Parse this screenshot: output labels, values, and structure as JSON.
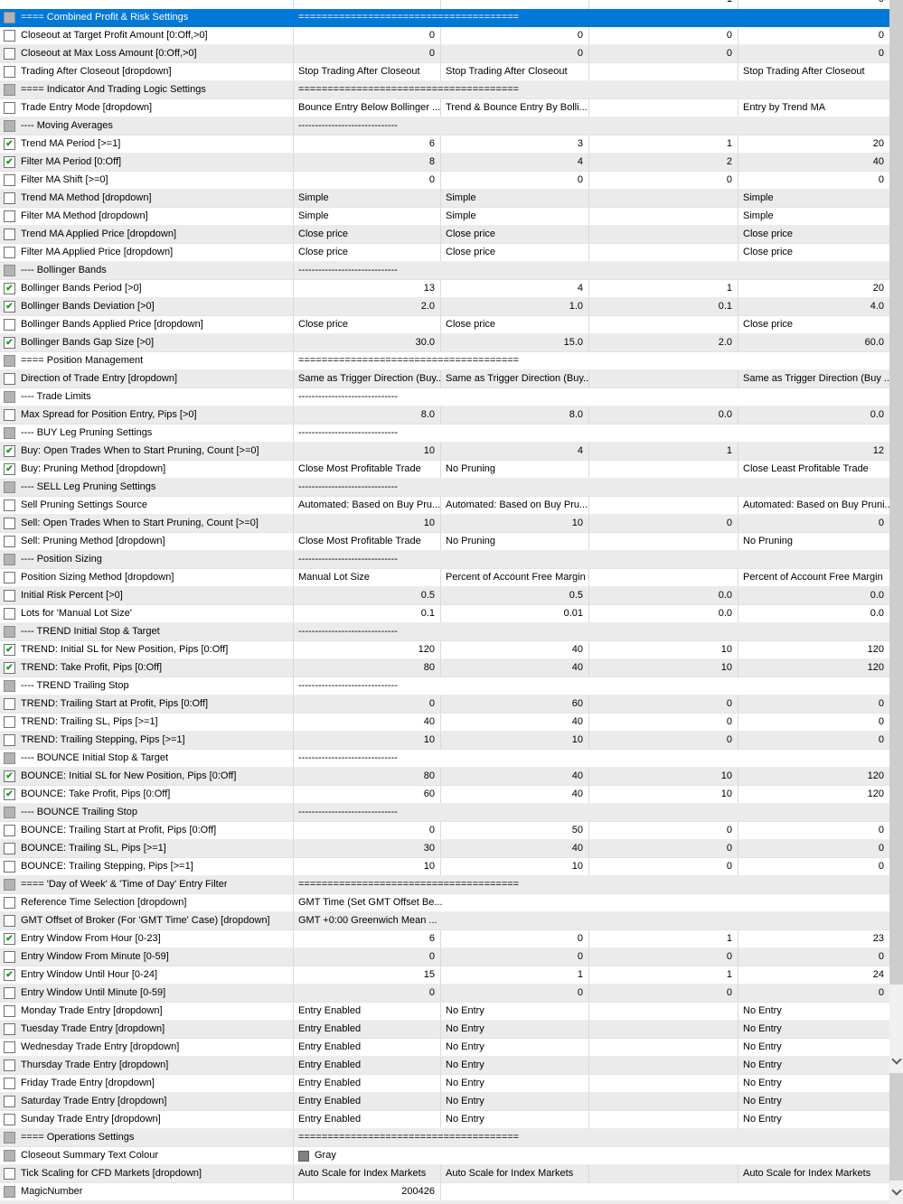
{
  "selection_color": "#0078d7",
  "check_color": "#149c14",
  "section_fill": "======================================",
  "sub_fill": "------------------------------",
  "partial_top_row": {
    "value": "",
    "start": "",
    "step": "1",
    "stop": "0"
  },
  "rows": [
    {
      "name": "==== Combined Profit & Risk Settings",
      "kind": "section",
      "checkbox": "gray",
      "selected": true
    },
    {
      "name": "Closeout at Target Profit Amount [0:Off,>0]",
      "kind": "param",
      "checkbox": "unchecked",
      "cells": [
        "0",
        "0",
        "0",
        "0"
      ]
    },
    {
      "name": "Closeout at Max Loss Amount [0:Off,>0]",
      "kind": "param",
      "checkbox": "unchecked",
      "cells": [
        "0",
        "0",
        "0",
        "0"
      ]
    },
    {
      "name": "Trading After Closeout [dropdown]",
      "kind": "param",
      "checkbox": "unchecked",
      "cells": [
        "Stop Trading After Closeout",
        "Stop Trading After Closeout",
        "",
        "Stop Trading After Closeout"
      ]
    },
    {
      "name": "==== Indicator And Trading Logic Settings",
      "kind": "section",
      "checkbox": "gray"
    },
    {
      "name": "Trade Entry Mode [dropdown]",
      "kind": "param",
      "checkbox": "unchecked",
      "cells": [
        "Bounce Entry Below Bollinger ...",
        "Trend & Bounce Entry By Bolli...",
        "",
        "Entry by Trend MA"
      ]
    },
    {
      "name": "---- Moving Averages",
      "kind": "sub",
      "checkbox": "gray"
    },
    {
      "name": "Trend MA Period [>=1]",
      "kind": "param",
      "checkbox": "checked",
      "cells": [
        "6",
        "3",
        "1",
        "20"
      ]
    },
    {
      "name": "Filter MA Period [0:Off]",
      "kind": "param",
      "checkbox": "checked",
      "cells": [
        "8",
        "4",
        "2",
        "40"
      ]
    },
    {
      "name": "Filter MA Shift [>=0]",
      "kind": "param",
      "checkbox": "unchecked",
      "cells": [
        "0",
        "0",
        "0",
        "0"
      ]
    },
    {
      "name": "Trend MA Method [dropdown]",
      "kind": "param",
      "checkbox": "unchecked",
      "cells": [
        "Simple",
        "Simple",
        "",
        "Simple"
      ]
    },
    {
      "name": "Filter MA Method [dropdown]",
      "kind": "param",
      "checkbox": "unchecked",
      "cells": [
        "Simple",
        "Simple",
        "",
        "Simple"
      ]
    },
    {
      "name": "Trend MA Applied Price [dropdown]",
      "kind": "param",
      "checkbox": "unchecked",
      "cells": [
        "Close price",
        "Close price",
        "",
        "Close price"
      ]
    },
    {
      "name": "Filter MA Applied Price [dropdown]",
      "kind": "param",
      "checkbox": "unchecked",
      "cells": [
        "Close price",
        "Close price",
        "",
        "Close price"
      ]
    },
    {
      "name": "---- Bollinger Bands",
      "kind": "sub",
      "checkbox": "gray"
    },
    {
      "name": "Bollinger Bands Period [>0]",
      "kind": "param",
      "checkbox": "checked",
      "cells": [
        "13",
        "4",
        "1",
        "20"
      ]
    },
    {
      "name": "Bollinger Bands Deviation [>0]",
      "kind": "param",
      "checkbox": "checked",
      "cells": [
        "2.0",
        "1.0",
        "0.1",
        "4.0"
      ]
    },
    {
      "name": "Bollinger Bands Applied Price [dropdown]",
      "kind": "param",
      "checkbox": "unchecked",
      "cells": [
        "Close price",
        "Close price",
        "",
        "Close price"
      ]
    },
    {
      "name": "Bollinger Bands Gap Size [>0]",
      "kind": "param",
      "checkbox": "checked",
      "cells": [
        "30.0",
        "15.0",
        "2.0",
        "60.0"
      ]
    },
    {
      "name": "==== Position Management",
      "kind": "section",
      "checkbox": "gray"
    },
    {
      "name": "Direction of Trade Entry [dropdown]",
      "kind": "param",
      "checkbox": "unchecked",
      "cells": [
        "Same as Trigger Direction (Buy...",
        "Same as Trigger Direction (Buy...",
        "",
        "Same as Trigger Direction (Buy ..."
      ]
    },
    {
      "name": "---- Trade Limits",
      "kind": "sub",
      "checkbox": "gray"
    },
    {
      "name": "Max Spread for Position Entry, Pips [>0]",
      "kind": "param",
      "checkbox": "unchecked",
      "cells": [
        "8.0",
        "8.0",
        "0.0",
        "0.0"
      ]
    },
    {
      "name": "---- BUY Leg Pruning Settings",
      "kind": "sub",
      "checkbox": "gray"
    },
    {
      "name": "Buy: Open Trades When to Start Pruning, Count [>=0]",
      "kind": "param",
      "checkbox": "checked",
      "cells": [
        "10",
        "4",
        "1",
        "12"
      ]
    },
    {
      "name": "Buy: Pruning Method [dropdown]",
      "kind": "param",
      "checkbox": "checked",
      "cells": [
        "Close Most Profitable Trade",
        "No Pruning",
        "",
        "Close Least Profitable Trade"
      ]
    },
    {
      "name": "---- SELL Leg Pruning Settings",
      "kind": "sub",
      "checkbox": "gray"
    },
    {
      "name": "Sell Pruning Settings Source",
      "kind": "param",
      "checkbox": "unchecked",
      "cells": [
        "Automated: Based on Buy Pru...",
        "Automated: Based on Buy Pru...",
        "",
        "Automated: Based on Buy Pruni..."
      ]
    },
    {
      "name": "Sell: Open Trades When to Start Pruning, Count [>=0]",
      "kind": "param",
      "checkbox": "unchecked",
      "cells": [
        "10",
        "10",
        "0",
        "0"
      ]
    },
    {
      "name": "Sell: Pruning Method [dropdown]",
      "kind": "param",
      "checkbox": "unchecked",
      "cells": [
        "Close Most Profitable Trade",
        "No Pruning",
        "",
        "No Pruning"
      ]
    },
    {
      "name": "---- Position Sizing",
      "kind": "sub",
      "checkbox": "gray"
    },
    {
      "name": "Position Sizing Method [dropdown]",
      "kind": "param",
      "checkbox": "unchecked",
      "cells": [
        "Manual Lot Size",
        "Percent of Account Free Margin",
        "",
        "Percent of Account Free Margin"
      ]
    },
    {
      "name": "Initial Risk Percent [>0]",
      "kind": "param",
      "checkbox": "unchecked",
      "cells": [
        "0.5",
        "0.5",
        "0.0",
        "0.0"
      ]
    },
    {
      "name": "Lots for 'Manual Lot Size'",
      "kind": "param",
      "checkbox": "unchecked",
      "cells": [
        "0.1",
        "0.01",
        "0.0",
        "0.0"
      ]
    },
    {
      "name": "---- TREND Initial Stop & Target",
      "kind": "sub",
      "checkbox": "gray"
    },
    {
      "name": "TREND: Initial SL for New Position, Pips [0:Off]",
      "kind": "param",
      "checkbox": "checked",
      "cells": [
        "120",
        "40",
        "10",
        "120"
      ]
    },
    {
      "name": "TREND: Take Profit, Pips [0:Off]",
      "kind": "param",
      "checkbox": "checked",
      "cells": [
        "80",
        "40",
        "10",
        "120"
      ]
    },
    {
      "name": "---- TREND Trailing Stop",
      "kind": "sub",
      "checkbox": "gray"
    },
    {
      "name": "TREND: Trailing Start at Profit, Pips [0:Off]",
      "kind": "param",
      "checkbox": "unchecked",
      "cells": [
        "0",
        "60",
        "0",
        "0"
      ]
    },
    {
      "name": "TREND: Trailing SL, Pips [>=1]",
      "kind": "param",
      "checkbox": "unchecked",
      "cells": [
        "40",
        "40",
        "0",
        "0"
      ]
    },
    {
      "name": "TREND: Trailing Stepping, Pips [>=1]",
      "kind": "param",
      "checkbox": "unchecked",
      "cells": [
        "10",
        "10",
        "0",
        "0"
      ]
    },
    {
      "name": "---- BOUNCE Initial Stop & Target",
      "kind": "sub",
      "checkbox": "gray"
    },
    {
      "name": "BOUNCE: Initial SL for New Position, Pips [0:Off]",
      "kind": "param",
      "checkbox": "checked",
      "cells": [
        "80",
        "40",
        "10",
        "120"
      ]
    },
    {
      "name": "BOUNCE: Take Profit, Pips [0:Off]",
      "kind": "param",
      "checkbox": "checked",
      "cells": [
        "60",
        "40",
        "10",
        "120"
      ]
    },
    {
      "name": "---- BOUNCE Trailing Stop",
      "kind": "sub",
      "checkbox": "gray"
    },
    {
      "name": "BOUNCE: Trailing Start at Profit, Pips [0:Off]",
      "kind": "param",
      "checkbox": "unchecked",
      "cells": [
        "0",
        "50",
        "0",
        "0"
      ]
    },
    {
      "name": "BOUNCE: Trailing SL, Pips [>=1]",
      "kind": "param",
      "checkbox": "unchecked",
      "cells": [
        "30",
        "40",
        "0",
        "0"
      ]
    },
    {
      "name": "BOUNCE: Trailing Stepping, Pips [>=1]",
      "kind": "param",
      "checkbox": "unchecked",
      "cells": [
        "10",
        "10",
        "0",
        "0"
      ]
    },
    {
      "name": "==== 'Day of Week' & 'Time of Day' Entry Filter",
      "kind": "section",
      "checkbox": "gray"
    },
    {
      "name": "Reference Time Selection [dropdown]",
      "kind": "span",
      "checkbox": "unchecked",
      "span": "GMT Time (Set GMT Offset Be..."
    },
    {
      "name": "GMT Offset of Broker (For 'GMT Time' Case) [dropdown]",
      "kind": "span",
      "checkbox": "unchecked",
      "span": "GMT +0:00 Greenwich Mean ..."
    },
    {
      "name": "Entry Window From Hour [0-23]",
      "kind": "param",
      "checkbox": "checked",
      "cells": [
        "6",
        "0",
        "1",
        "23"
      ]
    },
    {
      "name": "Entry Window From Minute [0-59]",
      "kind": "param",
      "checkbox": "unchecked",
      "cells": [
        "0",
        "0",
        "0",
        "0"
      ]
    },
    {
      "name": "Entry Window Until Hour [0-24]",
      "kind": "param",
      "checkbox": "checked",
      "cells": [
        "15",
        "1",
        "1",
        "24"
      ]
    },
    {
      "name": "Entry Window Until Minute [0-59]",
      "kind": "param",
      "checkbox": "unchecked",
      "cells": [
        "0",
        "0",
        "0",
        "0"
      ]
    },
    {
      "name": "Monday Trade Entry [dropdown]",
      "kind": "param",
      "checkbox": "unchecked",
      "cells": [
        "Entry Enabled",
        "No Entry",
        "",
        "No Entry"
      ]
    },
    {
      "name": "Tuesday Trade Entry [dropdown]",
      "kind": "param",
      "checkbox": "unchecked",
      "cells": [
        "Entry Enabled",
        "No Entry",
        "",
        "No Entry"
      ]
    },
    {
      "name": "Wednesday Trade Entry [dropdown]",
      "kind": "param",
      "checkbox": "unchecked",
      "cells": [
        "Entry Enabled",
        "No Entry",
        "",
        "No Entry"
      ]
    },
    {
      "name": "Thursday Trade Entry [dropdown]",
      "kind": "param",
      "checkbox": "unchecked",
      "cells": [
        "Entry Enabled",
        "No Entry",
        "",
        "No Entry"
      ]
    },
    {
      "name": "Friday Trade Entry [dropdown]",
      "kind": "param",
      "checkbox": "unchecked",
      "cells": [
        "Entry Enabled",
        "No Entry",
        "",
        "No Entry"
      ]
    },
    {
      "name": "Saturday Trade Entry [dropdown]",
      "kind": "param",
      "checkbox": "unchecked",
      "cells": [
        "Entry Enabled",
        "No Entry",
        "",
        "No Entry"
      ]
    },
    {
      "name": "Sunday Trade Entry [dropdown]",
      "kind": "param",
      "checkbox": "unchecked",
      "cells": [
        "Entry Enabled",
        "No Entry",
        "",
        "No Entry"
      ]
    },
    {
      "name": "==== Operations Settings",
      "kind": "section",
      "checkbox": "gray"
    },
    {
      "name": "Closeout Summary Text Colour",
      "kind": "colour",
      "checkbox": "gray",
      "span": "Gray",
      "swatch": "#808080"
    },
    {
      "name": "Tick Scaling for CFD Markets [dropdown]",
      "kind": "param",
      "checkbox": "unchecked",
      "cells": [
        "Auto Scale for Index Markets",
        "Auto Scale for Index Markets",
        "",
        "Auto Scale for Index Markets"
      ]
    },
    {
      "name": "MagicNumber",
      "kind": "value-only",
      "checkbox": "gray",
      "cells": [
        "200426"
      ]
    }
  ]
}
